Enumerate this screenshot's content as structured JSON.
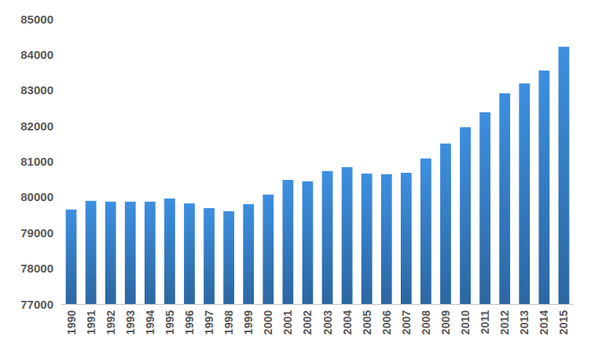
{
  "chart_data": {
    "type": "bar",
    "categories": [
      "1990",
      "1991",
      "1992",
      "1993",
      "1994",
      "1995",
      "1996",
      "1997",
      "1998",
      "1999",
      "2000",
      "2001",
      "2002",
      "2003",
      "2004",
      "2005",
      "2006",
      "2007",
      "2008",
      "2009",
      "2010",
      "2011",
      "2012",
      "2013",
      "2014",
      "2015"
    ],
    "values": [
      79650,
      79890,
      79870,
      79870,
      79870,
      79960,
      79820,
      79690,
      79600,
      79800,
      80070,
      80480,
      80440,
      80730,
      80840,
      80660,
      80640,
      80680,
      81080,
      81500,
      81960,
      82380,
      82910,
      83190,
      83550,
      84220
    ],
    "color": "#3d8fe0",
    "ylim": [
      77000,
      85000
    ],
    "yticks": [
      77000,
      78000,
      79000,
      80000,
      81000,
      82000,
      83000,
      84000,
      85000
    ],
    "grid": false
  }
}
